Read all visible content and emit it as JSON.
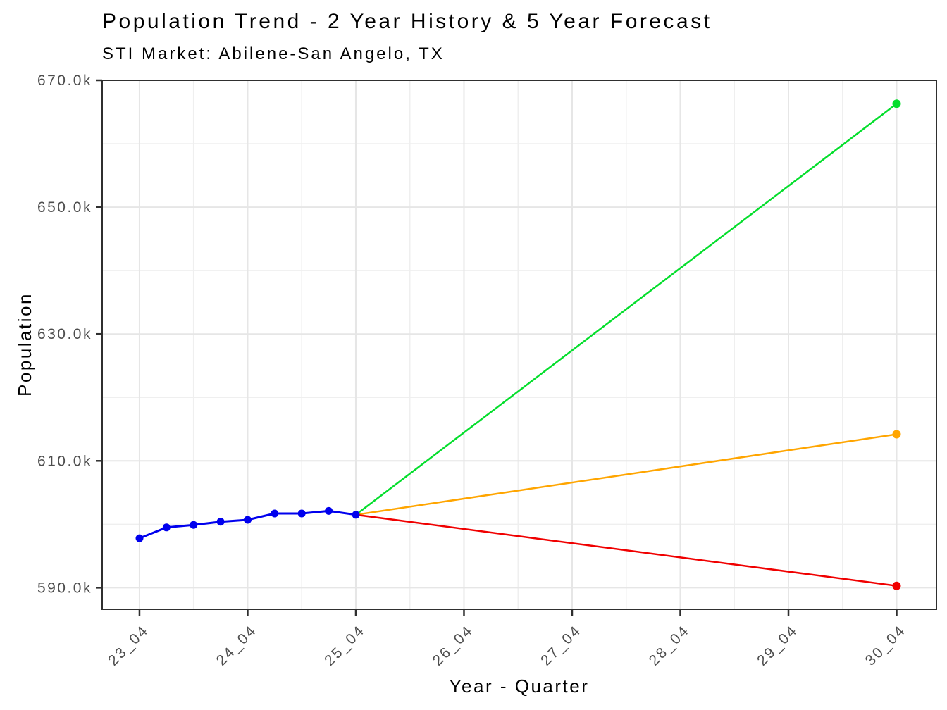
{
  "header": {
    "title": "Population Trend - 2 Year History & 5 Year Forecast",
    "subtitle": "STI Market: Abilene-San Angelo, TX"
  },
  "chart_data": {
    "type": "line",
    "title": "Population Trend - 2 Year History & 5 Year Forecast",
    "subtitle": "STI Market: Abilene-San Angelo, TX",
    "xlabel": "Year - Quarter",
    "ylabel": "Population",
    "xlim": [
      -0.345,
      7.368
    ],
    "ylim": [
      586600,
      670000
    ],
    "grid": {
      "major_color": "#E6E6E6",
      "minor_color": "#EFEFEF"
    },
    "panel_border_color": "#2F2F2F",
    "tick_color": "#2F2F2F",
    "axis_text_color": "#4d4d4d",
    "x_axis": {
      "ticks": [
        {
          "x": 0,
          "label": "23_04"
        },
        {
          "x": 1,
          "label": "24_04"
        },
        {
          "x": 2,
          "label": "25_04"
        },
        {
          "x": 3,
          "label": "26_04"
        },
        {
          "x": 4,
          "label": "27_04"
        },
        {
          "x": 5,
          "label": "28_04"
        },
        {
          "x": 6,
          "label": "29_04"
        },
        {
          "x": 7,
          "label": "30_04"
        }
      ],
      "minor": [
        0.5,
        1.5,
        2.5,
        3.5,
        4.5,
        5.5,
        6.5
      ]
    },
    "y_axis": {
      "ticks": [
        {
          "value": 590000,
          "label": "590.0k"
        },
        {
          "value": 610000,
          "label": "610.0k"
        },
        {
          "value": 630000,
          "label": "630.0k"
        },
        {
          "value": 650000,
          "label": "650.0k"
        },
        {
          "value": 670000,
          "label": "670.0k"
        }
      ],
      "minor": [
        600000,
        620000,
        640000,
        660000
      ]
    },
    "series": [
      {
        "name": "history",
        "color": "#0000EE",
        "line_width": 3,
        "markers": "all",
        "marker_radius": 5.5,
        "quarters": [
          "23_04",
          "24_01",
          "24_02",
          "24_03",
          "24_04",
          "25_01",
          "25_02",
          "25_03",
          "25_04"
        ],
        "x": [
          0,
          0.25,
          0.5,
          0.75,
          1,
          1.25,
          1.5,
          1.75,
          2
        ],
        "values": [
          597800,
          599500,
          599900,
          600400,
          600700,
          601700,
          601700,
          602100,
          601500
        ]
      },
      {
        "name": "forecast-high",
        "color": "#05DE2D",
        "line_width": 2.5,
        "markers": "last",
        "marker_radius": 6,
        "quarters": [
          "25_04",
          "30_04"
        ],
        "x": [
          2,
          7
        ],
        "values": [
          601500,
          666300
        ]
      },
      {
        "name": "forecast-base",
        "color": "#FFA500",
        "line_width": 2.5,
        "markers": "last",
        "marker_radius": 6,
        "quarters": [
          "25_04",
          "30_04"
        ],
        "x": [
          2,
          7
        ],
        "values": [
          601500,
          614200
        ]
      },
      {
        "name": "forecast-low",
        "color": "#F00000",
        "line_width": 2.5,
        "markers": "last",
        "marker_radius": 6,
        "quarters": [
          "25_04",
          "30_04"
        ],
        "x": [
          2,
          7
        ],
        "values": [
          601500,
          590300
        ]
      }
    ],
    "legend": "none"
  }
}
